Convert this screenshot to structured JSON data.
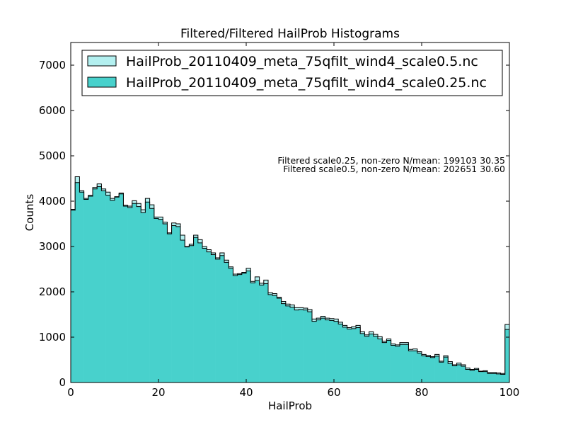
{
  "chart_data": {
    "type": "area",
    "title": "Filtered/Filtered HailProb Histograms",
    "xlabel": "HailProb",
    "ylabel": "Counts",
    "xlim": [
      0,
      100
    ],
    "ylim": [
      0,
      7500
    ],
    "xticks": [
      0,
      20,
      40,
      60,
      80,
      100
    ],
    "yticks": [
      0,
      1000,
      2000,
      3000,
      4000,
      5000,
      6000,
      7000
    ],
    "legend_position": "top",
    "annotations": [
      "Filtered scale0.25, non-zero N/mean: 199103 30.35",
      "Filtered scale0.5, non-zero N/mean: 202651 30.60"
    ],
    "bin_width": 1,
    "x": [
      0,
      1,
      2,
      3,
      4,
      5,
      6,
      7,
      8,
      9,
      10,
      11,
      12,
      13,
      14,
      15,
      16,
      17,
      18,
      19,
      20,
      21,
      22,
      23,
      24,
      25,
      26,
      27,
      28,
      29,
      30,
      31,
      32,
      33,
      34,
      35,
      36,
      37,
      38,
      39,
      40,
      41,
      42,
      43,
      44,
      45,
      46,
      47,
      48,
      49,
      50,
      51,
      52,
      53,
      54,
      55,
      56,
      57,
      58,
      59,
      60,
      61,
      62,
      63,
      64,
      65,
      66,
      67,
      68,
      69,
      70,
      71,
      72,
      73,
      74,
      75,
      76,
      77,
      78,
      79,
      80,
      81,
      82,
      83,
      84,
      85,
      86,
      87,
      88,
      89,
      90,
      91,
      92,
      93,
      94,
      95,
      96,
      97,
      98,
      99
    ],
    "series": [
      {
        "name": "HailProb_20110409_meta_75qfilt_wind4_scale0.5.nc",
        "color": "#b3f0f0",
        "values": [
          3820,
          4540,
          4230,
          4060,
          4130,
          4300,
          4380,
          4270,
          4200,
          4060,
          4100,
          4180,
          3910,
          3890,
          4010,
          3950,
          3810,
          4060,
          3920,
          3650,
          3650,
          3540,
          3300,
          3520,
          3500,
          3250,
          3000,
          3050,
          3250,
          3150,
          3000,
          2930,
          2860,
          2750,
          2860,
          2700,
          2550,
          2390,
          2400,
          2430,
          2520,
          2230,
          2330,
          2190,
          2260,
          1980,
          1960,
          1880,
          1790,
          1730,
          1710,
          1650,
          1650,
          1640,
          1610,
          1400,
          1420,
          1460,
          1420,
          1410,
          1400,
          1330,
          1260,
          1210,
          1230,
          1260,
          1120,
          1050,
          1120,
          1060,
          1010,
          910,
          960,
          850,
          830,
          880,
          880,
          730,
          740,
          680,
          620,
          600,
          570,
          620,
          470,
          590,
          460,
          390,
          430,
          390,
          320,
          290,
          310,
          250,
          260,
          220,
          220,
          210,
          200,
          1280
        ]
      },
      {
        "name": "HailProb_20110409_meta_75qfilt_wind4_scale0.25.nc",
        "color": "#48d1cc",
        "values": [
          3800,
          4410,
          4200,
          4040,
          4110,
          4270,
          4320,
          4230,
          4130,
          4020,
          4090,
          4160,
          3890,
          3860,
          3950,
          3880,
          3750,
          3980,
          3840,
          3620,
          3600,
          3500,
          3280,
          3460,
          3440,
          3140,
          2990,
          3020,
          3200,
          3080,
          2960,
          2880,
          2820,
          2720,
          2800,
          2650,
          2520,
          2360,
          2380,
          2410,
          2460,
          2200,
          2250,
          2150,
          2180,
          1940,
          1920,
          1860,
          1740,
          1690,
          1660,
          1600,
          1610,
          1600,
          1560,
          1350,
          1380,
          1420,
          1380,
          1370,
          1350,
          1290,
          1220,
          1180,
          1190,
          1210,
          1080,
          1020,
          1070,
          1020,
          960,
          880,
          930,
          820,
          800,
          840,
          840,
          700,
          700,
          650,
          590,
          570,
          550,
          580,
          450,
          560,
          420,
          370,
          390,
          360,
          290,
          270,
          290,
          240,
          240,
          200,
          200,
          190,
          180,
          1170
        ]
      }
    ]
  }
}
